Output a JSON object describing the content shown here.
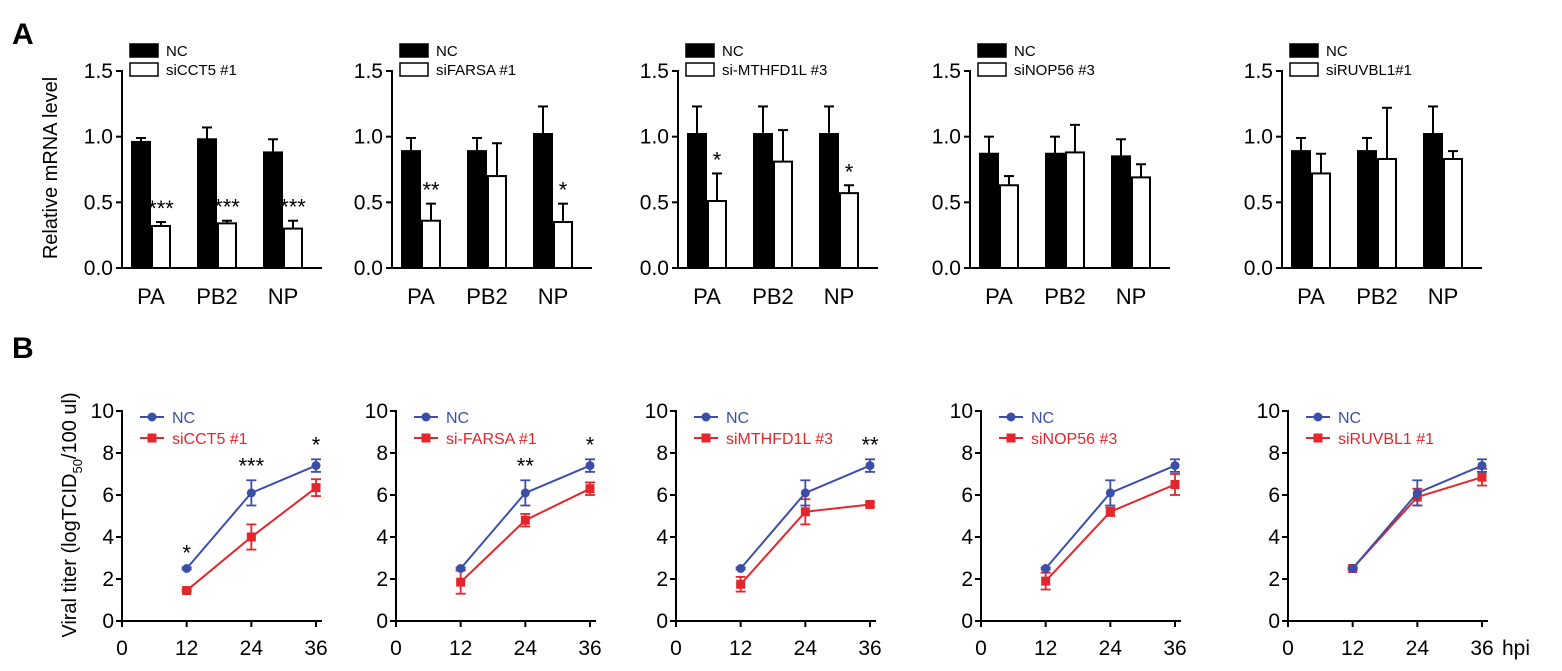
{
  "panel_labels": {
    "a": "A",
    "b": "B"
  },
  "colors": {
    "nc_bar": "#000000",
    "si_bar": "#ffffff",
    "nc_line": "#3c4fa8",
    "si_line": "#e3262b",
    "axis": "#000000"
  },
  "chart_data": [
    {
      "type": "bar",
      "panel": "A",
      "legend": [
        "NC",
        "siCCT5 #1"
      ],
      "categories": [
        "PA",
        "PB2",
        "NP"
      ],
      "ylabel": "Relative mRNA level",
      "ylim": [
        0,
        1.5
      ],
      "yticks": [
        "0.0",
        "0.5",
        "1.0",
        "1.5"
      ],
      "series": [
        {
          "name": "NC",
          "values": [
            0.96,
            0.98,
            0.88
          ],
          "errors": [
            0.03,
            0.09,
            0.1
          ]
        },
        {
          "name": "siCCT5 #1",
          "values": [
            0.32,
            0.34,
            0.3
          ],
          "errors": [
            0.03,
            0.02,
            0.06
          ]
        }
      ],
      "significance": [
        "***",
        "***",
        "***"
      ]
    },
    {
      "type": "bar",
      "panel": "A",
      "legend": [
        "NC",
        "siFARSA #1"
      ],
      "categories": [
        "PA",
        "PB2",
        "NP"
      ],
      "ylabel": "",
      "ylim": [
        0,
        1.5
      ],
      "yticks": [
        "0.0",
        "0.5",
        "1.0",
        "1.5"
      ],
      "series": [
        {
          "name": "NC",
          "values": [
            0.89,
            0.89,
            1.02
          ],
          "errors": [
            0.1,
            0.1,
            0.21
          ]
        },
        {
          "name": "siFARSA #1",
          "values": [
            0.36,
            0.7,
            0.35
          ],
          "errors": [
            0.13,
            0.25,
            0.14
          ]
        }
      ],
      "significance": [
        "**",
        "",
        "*"
      ]
    },
    {
      "type": "bar",
      "panel": "A",
      "legend": [
        "NC",
        "si-MTHFD1L #3"
      ],
      "categories": [
        "PA",
        "PB2",
        "NP"
      ],
      "ylabel": "",
      "ylim": [
        0,
        1.5
      ],
      "yticks": [
        "0.0",
        "0.5",
        "1.0",
        "1.5"
      ],
      "series": [
        {
          "name": "NC",
          "values": [
            1.02,
            1.02,
            1.02
          ],
          "errors": [
            0.21,
            0.21,
            0.21
          ]
        },
        {
          "name": "si-MTHFD1L #3",
          "values": [
            0.51,
            0.81,
            0.57
          ],
          "errors": [
            0.21,
            0.24,
            0.06
          ]
        }
      ],
      "significance": [
        "*",
        "",
        "*"
      ]
    },
    {
      "type": "bar",
      "panel": "A",
      "legend": [
        "NC",
        "siNOP56 #3"
      ],
      "categories": [
        "PA",
        "PB2",
        "NP"
      ],
      "ylabel": "",
      "ylim": [
        0,
        1.5
      ],
      "yticks": [
        "0.0",
        "0.5",
        "1.0",
        "1.5"
      ],
      "series": [
        {
          "name": "NC",
          "values": [
            0.87,
            0.87,
            0.85
          ],
          "errors": [
            0.13,
            0.13,
            0.13
          ]
        },
        {
          "name": "siNOP56 #3",
          "values": [
            0.63,
            0.88,
            0.69
          ],
          "errors": [
            0.07,
            0.21,
            0.1
          ]
        }
      ],
      "significance": [
        "",
        "",
        ""
      ]
    },
    {
      "type": "bar",
      "panel": "A",
      "legend": [
        "NC",
        "siRUVBL1#1"
      ],
      "categories": [
        "PA",
        "PB2",
        "NP"
      ],
      "ylabel": "",
      "ylim": [
        0,
        1.5
      ],
      "yticks": [
        "0.0",
        "0.5",
        "1.0",
        "1.5"
      ],
      "series": [
        {
          "name": "NC",
          "values": [
            0.89,
            0.89,
            1.02
          ],
          "errors": [
            0.1,
            0.1,
            0.21
          ]
        },
        {
          "name": "siRUVBL1#1",
          "values": [
            0.72,
            0.83,
            0.83
          ],
          "errors": [
            0.15,
            0.39,
            0.06
          ]
        }
      ],
      "significance": [
        "",
        "",
        ""
      ]
    },
    {
      "type": "line",
      "panel": "B",
      "legend": [
        "NC",
        "siCCT5 #1"
      ],
      "x": [
        12,
        24,
        36
      ],
      "xlim": [
        0,
        36
      ],
      "xticks": [
        "0",
        "12",
        "24",
        "36"
      ],
      "ylim": [
        0,
        10
      ],
      "yticks": [
        "0",
        "2",
        "4",
        "6",
        "8",
        "10"
      ],
      "ylabel": {
        "main": "Viral titer (logTCID",
        "sub": "50",
        "end": "/100 ul)"
      },
      "xlabel": "",
      "series": [
        {
          "name": "NC",
          "values": [
            2.5,
            6.1,
            7.4
          ],
          "errors": [
            0.05,
            0.6,
            0.3
          ]
        },
        {
          "name": "siCCT5 #1",
          "values": [
            1.45,
            4.0,
            6.35
          ],
          "errors": [
            0.05,
            0.6,
            0.4
          ]
        }
      ],
      "significance": [
        "*",
        "***",
        "*"
      ]
    },
    {
      "type": "line",
      "panel": "B",
      "legend": [
        "NC",
        "si-FARSA #1"
      ],
      "x": [
        12,
        24,
        36
      ],
      "xlim": [
        0,
        36
      ],
      "xticks": [
        "0",
        "12",
        "24",
        "36"
      ],
      "ylim": [
        0,
        10
      ],
      "yticks": [
        "0",
        "2",
        "4",
        "6",
        "8",
        "10"
      ],
      "ylabel": null,
      "xlabel": "",
      "series": [
        {
          "name": "NC",
          "values": [
            2.5,
            6.1,
            7.4
          ],
          "errors": [
            0.05,
            0.6,
            0.3
          ]
        },
        {
          "name": "si-FARSA #1",
          "values": [
            1.85,
            4.8,
            6.3
          ],
          "errors": [
            0.55,
            0.3,
            0.3
          ]
        }
      ],
      "significance": [
        "",
        "**",
        "*"
      ]
    },
    {
      "type": "line",
      "panel": "B",
      "legend": [
        "NC",
        "siMTHFD1L #3"
      ],
      "x": [
        12,
        24,
        36
      ],
      "xlim": [
        0,
        36
      ],
      "xticks": [
        "0",
        "12",
        "24",
        "36"
      ],
      "ylim": [
        0,
        10
      ],
      "yticks": [
        "0",
        "2",
        "4",
        "6",
        "8",
        "10"
      ],
      "ylabel": null,
      "xlabel": "",
      "series": [
        {
          "name": "NC",
          "values": [
            2.5,
            6.1,
            7.4
          ],
          "errors": [
            0.05,
            0.6,
            0.3
          ]
        },
        {
          "name": "siMTHFD1L #3",
          "values": [
            1.75,
            5.2,
            5.55
          ],
          "errors": [
            0.35,
            0.6,
            0.1
          ]
        }
      ],
      "significance": [
        "",
        "",
        "**"
      ]
    },
    {
      "type": "line",
      "panel": "B",
      "legend": [
        "NC",
        "siNOP56 #3"
      ],
      "x": [
        12,
        24,
        36
      ],
      "xlim": [
        0,
        36
      ],
      "xticks": [
        "0",
        "12",
        "24",
        "36"
      ],
      "ylim": [
        0,
        10
      ],
      "yticks": [
        "0",
        "2",
        "4",
        "6",
        "8",
        "10"
      ],
      "ylabel": null,
      "xlabel": "",
      "series": [
        {
          "name": "NC",
          "values": [
            2.5,
            6.1,
            7.4
          ],
          "errors": [
            0.05,
            0.6,
            0.3
          ]
        },
        {
          "name": "siNOP56 #3",
          "values": [
            1.9,
            5.2,
            6.5
          ],
          "errors": [
            0.4,
            0.2,
            0.5
          ]
        }
      ],
      "significance": [
        "",
        "",
        ""
      ]
    },
    {
      "type": "line",
      "panel": "B",
      "legend": [
        "NC",
        "siRUVBL1 #1"
      ],
      "x": [
        12,
        24,
        36
      ],
      "xlim": [
        0,
        36
      ],
      "xticks": [
        "0",
        "12",
        "24",
        "36"
      ],
      "ylim": [
        0,
        10
      ],
      "yticks": [
        "0",
        "2",
        "4",
        "6",
        "8",
        "10"
      ],
      "ylabel": null,
      "xlabel": "hpi",
      "series": [
        {
          "name": "NC",
          "values": [
            2.5,
            6.1,
            7.4
          ],
          "errors": [
            0.05,
            0.6,
            0.3
          ]
        },
        {
          "name": "siRUVBL1 #1",
          "values": [
            2.5,
            5.9,
            6.85
          ],
          "errors": [
            0.05,
            0.4,
            0.4
          ]
        }
      ],
      "significance": [
        "",
        "",
        ""
      ]
    }
  ]
}
